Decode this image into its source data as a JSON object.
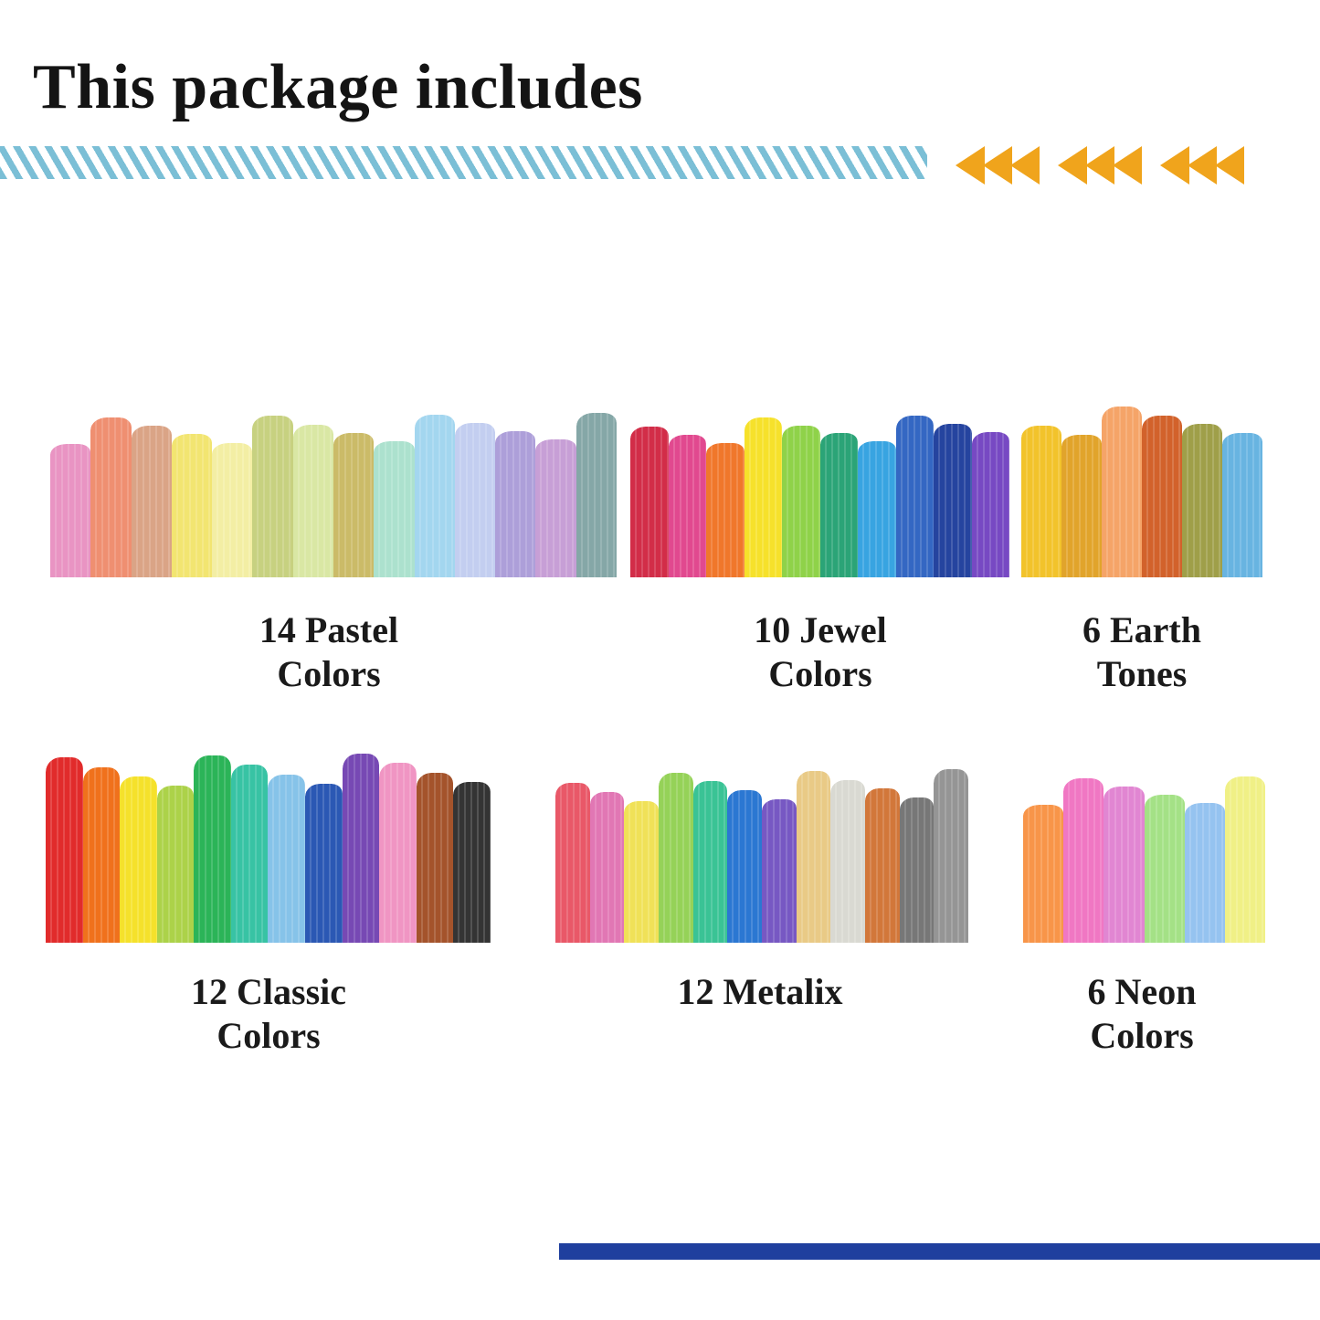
{
  "title": "This package includes",
  "colors": {
    "stripe": "#7bbfd6",
    "arrow": "#f0a41c",
    "bottom_line": "#1f3f9e"
  },
  "groups": [
    {
      "id": "pastel",
      "label_line1": "14 Pastel",
      "label_line2": "Colors",
      "swatches": [
        "#e88fc0",
        "#ef8a6a",
        "#d9a080",
        "#f2e46a",
        "#f3eea0",
        "#c5cf7a",
        "#d8e6a0",
        "#c9b860",
        "#a8e0cc",
        "#9fd4ef",
        "#c0ccf0",
        "#a99ad8",
        "#c59ad4",
        "#7fa3a3"
      ]
    },
    {
      "id": "jewel",
      "label_line1": "10 Jewel",
      "label_line2": "Colors",
      "swatches": [
        "#d0223f",
        "#e0408a",
        "#f07020",
        "#f6e020",
        "#8ad040",
        "#20a070",
        "#2ea0e0",
        "#2a5fc0",
        "#1a3a9a",
        "#7040c0"
      ]
    },
    {
      "id": "earth",
      "label_line1": "6 Earth",
      "label_line2": "Tones",
      "swatches": [
        "#f2c020",
        "#e0a020",
        "#f5a060",
        "#d05a20",
        "#9a9a40",
        "#60b0e0"
      ]
    },
    {
      "id": "classic",
      "label_line1": "12 Classic",
      "label_line2": "Colors",
      "swatches": [
        "#e02020",
        "#f06a10",
        "#f5e020",
        "#a8d040",
        "#20b050",
        "#2ec0a0",
        "#80c0e8",
        "#2050b0",
        "#7040b0",
        "#f090c0",
        "#a04a20",
        "#2a2a2a"
      ]
    },
    {
      "id": "metalix",
      "label_line1": "12 Metalix",
      "label_line2": "",
      "swatches": [
        "#e85060",
        "#e070b0",
        "#f0e050",
        "#90d050",
        "#30c090",
        "#2070d0",
        "#7050c0",
        "#e8c880",
        "#d8d8d0",
        "#d07030",
        "#707070",
        "#909090"
      ]
    },
    {
      "id": "neon",
      "label_line1": "6 Neon",
      "label_line2": "Colors",
      "swatches": [
        "#f89040",
        "#f070c0",
        "#e080d0",
        "#a0e080",
        "#90c0f0",
        "#f0f080"
      ]
    }
  ]
}
